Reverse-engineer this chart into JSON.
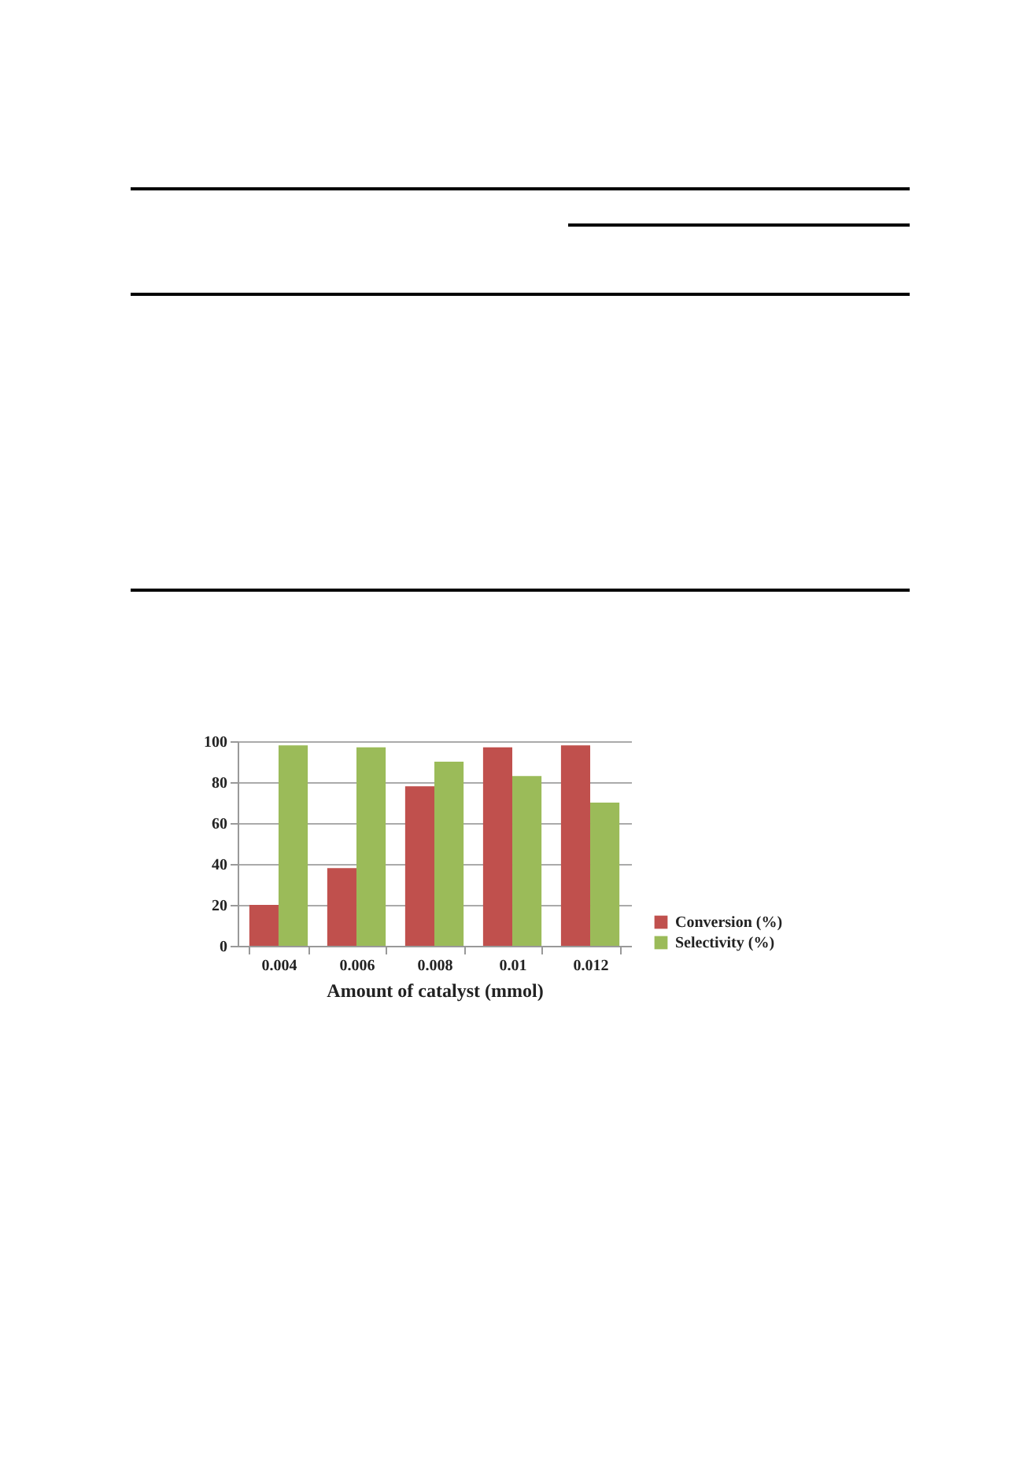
{
  "chart_data": {
    "type": "bar",
    "xlabel": "Amount of catalyst (mmol)",
    "categories": [
      "0.004",
      "0.006",
      "0.008",
      "0.01",
      "0.012"
    ],
    "series": [
      {
        "name": "Conversion (%)",
        "color": "#c0504d",
        "values": [
          20,
          38,
          78,
          97,
          98
        ]
      },
      {
        "name": "Selectivity (%)",
        "color": "#9bbb59",
        "values": [
          98,
          97,
          90,
          83,
          70
        ]
      }
    ],
    "ylim": [
      0,
      100
    ],
    "yticks": [
      0,
      20,
      40,
      60,
      80,
      100
    ],
    "grid": "y",
    "legend": "bottom right"
  }
}
